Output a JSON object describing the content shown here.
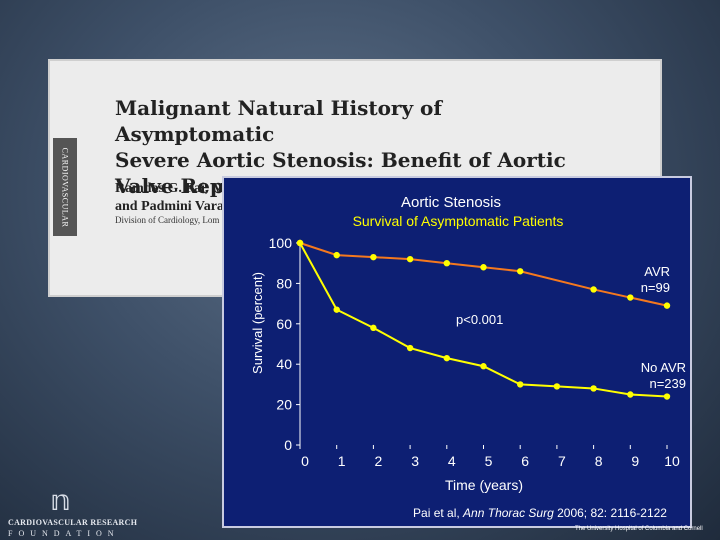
{
  "slide": {
    "paper": {
      "journal_tab": "CARDIOVASCULAR",
      "title_lines": [
        "Malignant Natural History of Asymptomatic",
        "Severe Aortic Stenosis: Benefit of Aortic",
        "Valve Replacement"
      ],
      "authors_lines": [
        "Ramdas G. Pai, MI",
        "and Padmini Vara"
      ],
      "affiliation": "Division of Cardiology, Lom"
    },
    "foundation": {
      "line1": "CARDIOVASCULAR RESEARCH",
      "line2": "FOUNDATION"
    },
    "hospital": "The University Hospital of Columbia and Cornell"
  },
  "chart_data": {
    "type": "line",
    "title": "Aortic Stenosis",
    "subtitle": "Survival of Asymptomatic Patients",
    "xlabel": "Time (years)",
    "ylabel": "Survival (percent)",
    "xlim": [
      0,
      10
    ],
    "ylim": [
      0,
      100
    ],
    "x_ticks": [
      "0",
      "1",
      "2",
      "3",
      "4",
      "5",
      "6",
      "7",
      "8",
      "9",
      "10"
    ],
    "y_ticks": [
      "0",
      "20",
      "40",
      "60",
      "80",
      "100"
    ],
    "series": [
      {
        "name": "AVR",
        "label_lines": [
          "AVR",
          "n=99"
        ],
        "color": "#f5781e",
        "marker_color": "#ffff00",
        "x": [
          0,
          1,
          2,
          3,
          4,
          5,
          6,
          8,
          9,
          10
        ],
        "values": [
          100,
          94,
          93,
          92,
          90,
          88,
          86,
          77,
          73,
          69
        ]
      },
      {
        "name": "No AVR",
        "label_lines": [
          "No AVR",
          "n=239"
        ],
        "color": "#ffff00",
        "marker_color": "#ffff00",
        "x": [
          0,
          1,
          2,
          3,
          4,
          5,
          6,
          7,
          8,
          9,
          10
        ],
        "values": [
          100,
          67,
          58,
          48,
          43,
          39,
          30,
          29,
          28,
          25,
          24
        ]
      }
    ],
    "annotation": "p<0.001",
    "citation": {
      "prefix": "Pai et al, ",
      "journal": "Ann Thorac Surg",
      "suffix": " 2006; 82: 2116-2122"
    }
  }
}
